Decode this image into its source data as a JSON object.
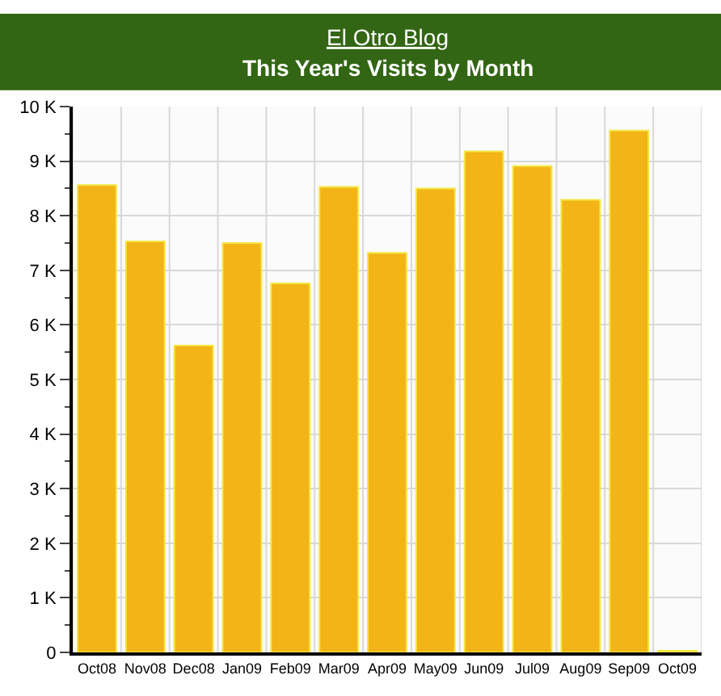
{
  "chart_data": {
    "type": "bar",
    "title": "El Otro Blog",
    "subtitle": "This Year's Visits by Month",
    "categories": [
      "Oct08",
      "Nov08",
      "Dec08",
      "Jan09",
      "Feb09",
      "Mar09",
      "Apr09",
      "May09",
      "Jun09",
      "Jul09",
      "Aug09",
      "Sep09",
      "Oct09"
    ],
    "values": [
      8.56,
      7.53,
      5.62,
      7.5,
      6.76,
      8.53,
      7.32,
      8.5,
      9.18,
      8.91,
      8.29,
      9.56,
      0.03
    ],
    "color": "#f2b417",
    "ylim": [
      0,
      10
    ],
    "yticks": [
      {
        "value": 0,
        "label": "0"
      },
      {
        "value": 1,
        "label": "1 K"
      },
      {
        "value": 2,
        "label": "2 K"
      },
      {
        "value": 3,
        "label": "3 K"
      },
      {
        "value": 4,
        "label": "4 K"
      },
      {
        "value": 5,
        "label": "5 K"
      },
      {
        "value": 6,
        "label": "6 K"
      },
      {
        "value": 7,
        "label": "7 K"
      },
      {
        "value": 8,
        "label": "8 K"
      },
      {
        "value": 9,
        "label": "9 K"
      },
      {
        "value": 10,
        "label": "10 K"
      }
    ],
    "grid": true,
    "legend": false
  }
}
